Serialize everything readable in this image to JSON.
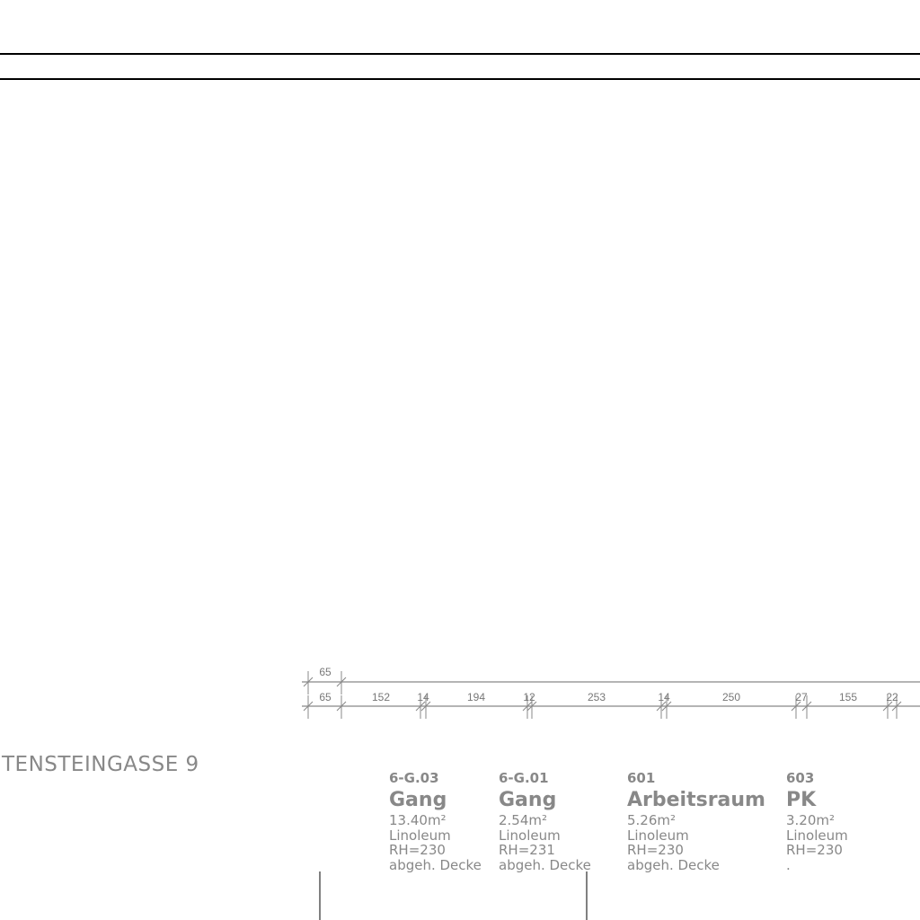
{
  "street_label": "TENSTEINGASSE 9",
  "dimensions_top": [
    "65"
  ],
  "dimensions_bottom": [
    "65",
    "152",
    "14",
    "194",
    "12",
    "253",
    "14",
    "250",
    "27",
    "155",
    "22"
  ],
  "rooms": [
    {
      "id": "6-G.03",
      "name": "Gang",
      "area": "13.40m²",
      "floor": "Linoleum",
      "height": "RH=230",
      "ceiling": "abgeh. Decke"
    },
    {
      "id": "6-G.01",
      "name": "Gang",
      "area": "2.54m²",
      "floor": "Linoleum",
      "height": "RH=231",
      "ceiling": "abgeh. Decke"
    },
    {
      "id": "601",
      "name": "Arbeitsraum",
      "area": "5.26m²",
      "floor": "Linoleum",
      "height": "RH=230",
      "ceiling": "abgeh. Decke"
    },
    {
      "id": "603",
      "name": "PK",
      "area": "3.20m²",
      "floor": "Linoleum",
      "height": "RH=230",
      "ceiling": "."
    }
  ],
  "colors": {
    "line": "#000000",
    "text": "#888888",
    "dimension": "#888888"
  }
}
